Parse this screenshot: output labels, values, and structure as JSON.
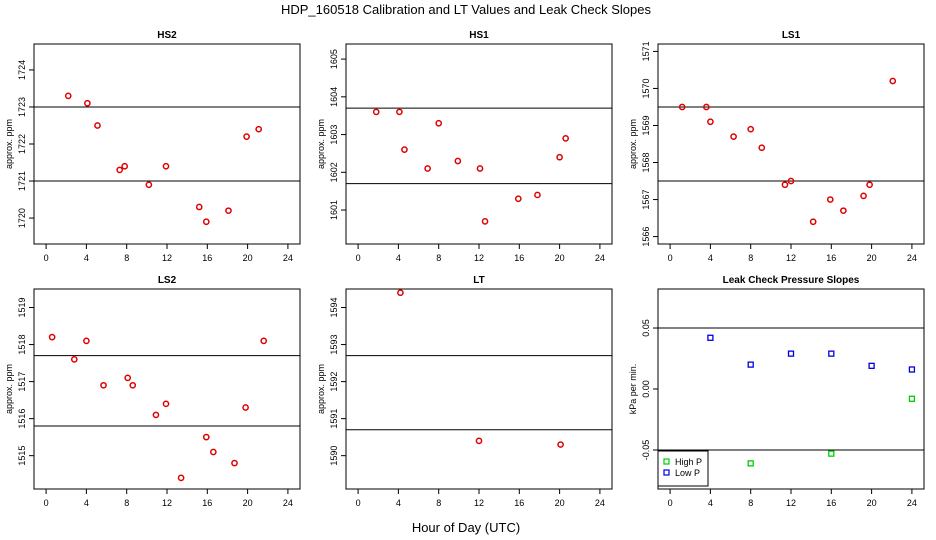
{
  "figure": {
    "title": "HDP_160518  Calibration and LT Values and Leak Check Slopes",
    "xlabel": "Hour of Day (UTC)"
  },
  "chart_data": [
    {
      "id": "hs2",
      "type": "scatter",
      "title": "HS2",
      "ylabel": "approx. ppm",
      "xlim": [
        -1.2,
        25.2
      ],
      "ylim": [
        1719.3,
        1724.7
      ],
      "xticks": [
        0,
        4,
        8,
        12,
        16,
        20,
        24
      ],
      "yticks": [
        1720,
        1721,
        1722,
        1723,
        1724
      ],
      "hlines": [
        1723.0,
        1721.0
      ],
      "color": "#e00000",
      "marker": "circle",
      "series": [
        {
          "name": "HS2",
          "x": [
            2.2,
            4.1,
            5.1,
            7.3,
            7.8,
            10.2,
            11.9,
            15.2,
            15.9,
            18.1,
            19.9,
            21.1
          ],
          "y": [
            1723.3,
            1723.1,
            1722.5,
            1721.3,
            1721.4,
            1720.9,
            1721.4,
            1720.3,
            1719.9,
            1720.2,
            1722.2,
            1722.4
          ]
        }
      ]
    },
    {
      "id": "hs1",
      "type": "scatter",
      "title": "HS1",
      "ylabel": "approx. ppm",
      "xlim": [
        -1.2,
        25.2
      ],
      "ylim": [
        1600.1,
        1605.4
      ],
      "xticks": [
        0,
        4,
        8,
        12,
        16,
        20,
        24
      ],
      "yticks": [
        1601,
        1602,
        1603,
        1604,
        1605
      ],
      "hlines": [
        1603.7,
        1601.7
      ],
      "color": "#e00000",
      "marker": "circle",
      "series": [
        {
          "name": "HS1",
          "x": [
            1.8,
            4.1,
            4.6,
            6.9,
            8.0,
            9.9,
            12.1,
            12.6,
            15.9,
            17.8,
            20.0,
            20.6
          ],
          "y": [
            1603.6,
            1603.6,
            1602.6,
            1602.1,
            1603.3,
            1602.3,
            1602.1,
            1600.7,
            1601.3,
            1601.4,
            1602.4,
            1602.9
          ]
        }
      ]
    },
    {
      "id": "ls1",
      "type": "scatter",
      "title": "LS1",
      "ylabel": "approx. ppm",
      "xlim": [
        -1.2,
        25.2
      ],
      "ylim": [
        1565.8,
        1571.2
      ],
      "xticks": [
        0,
        4,
        8,
        12,
        16,
        20,
        24
      ],
      "yticks": [
        1566,
        1567,
        1568,
        1569,
        1570,
        1571
      ],
      "hlines": [
        1569.5,
        1567.5
      ],
      "color": "#e00000",
      "marker": "circle",
      "series": [
        {
          "name": "LS1",
          "x": [
            1.2,
            3.6,
            4.0,
            6.3,
            8.0,
            9.1,
            11.4,
            12.0,
            14.2,
            15.9,
            17.2,
            19.2,
            19.8,
            22.1
          ],
          "y": [
            1569.5,
            1569.5,
            1569.1,
            1568.7,
            1568.9,
            1568.4,
            1567.4,
            1567.5,
            1566.4,
            1567.0,
            1566.7,
            1567.1,
            1567.4,
            1570.2
          ]
        }
      ]
    },
    {
      "id": "ls2",
      "type": "scatter",
      "title": "LS2",
      "ylabel": "approx. ppm",
      "xlim": [
        -1.2,
        25.2
      ],
      "ylim": [
        1514.1,
        1519.5
      ],
      "xticks": [
        0,
        4,
        8,
        12,
        16,
        20,
        24
      ],
      "yticks": [
        1515,
        1516,
        1517,
        1518,
        1519
      ],
      "hlines": [
        1517.7,
        1515.8
      ],
      "color": "#e00000",
      "marker": "circle",
      "series": [
        {
          "name": "LS2",
          "x": [
            0.6,
            2.8,
            4.0,
            5.7,
            8.1,
            8.6,
            10.9,
            11.9,
            13.4,
            15.9,
            16.6,
            18.7,
            19.8,
            21.6
          ],
          "y": [
            1518.2,
            1517.6,
            1518.1,
            1516.9,
            1517.1,
            1516.9,
            1516.1,
            1516.4,
            1514.4,
            1515.5,
            1515.1,
            1514.8,
            1516.3,
            1518.1
          ]
        }
      ]
    },
    {
      "id": "lt",
      "type": "scatter",
      "title": "LT",
      "ylabel": "approx. ppm",
      "xlim": [
        -1.2,
        25.2
      ],
      "ylim": [
        1589.1,
        1594.5
      ],
      "xticks": [
        0,
        4,
        8,
        12,
        16,
        20,
        24
      ],
      "yticks": [
        1590,
        1591,
        1592,
        1593,
        1594
      ],
      "hlines": [
        1592.7,
        1590.7
      ],
      "color": "#e00000",
      "marker": "circle",
      "series": [
        {
          "name": "LT",
          "x": [
            4.2,
            12.0,
            20.1
          ],
          "y": [
            1594.4,
            1590.4,
            1590.3
          ]
        }
      ]
    },
    {
      "id": "leak",
      "type": "scatter",
      "title": "Leak Check Pressure Slopes",
      "ylabel": "kPa per min.",
      "xlim": [
        -1.2,
        25.2
      ],
      "ylim": [
        -0.082,
        0.082
      ],
      "xticks": [
        0,
        4,
        8,
        12,
        16,
        20,
        24
      ],
      "yticks": [
        -0.05,
        0.0,
        0.05
      ],
      "ytick_labels": [
        "-0.05",
        "0.00",
        "0.05"
      ],
      "hlines": [
        0.05,
        -0.05
      ],
      "series": [
        {
          "name": "High P",
          "color": "#00cc00",
          "marker": "square",
          "x": [
            8,
            16,
            24
          ],
          "y": [
            -0.061,
            -0.053,
            -0.008
          ]
        },
        {
          "name": "Low P",
          "color": "#0000e0",
          "marker": "square",
          "x": [
            4,
            8,
            12,
            16,
            20,
            24
          ],
          "y": [
            0.042,
            0.02,
            0.029,
            0.029,
            0.019,
            0.016
          ]
        }
      ],
      "legend": {
        "position": "bottom-left",
        "entries": [
          "High P",
          "Low P"
        ]
      }
    }
  ]
}
